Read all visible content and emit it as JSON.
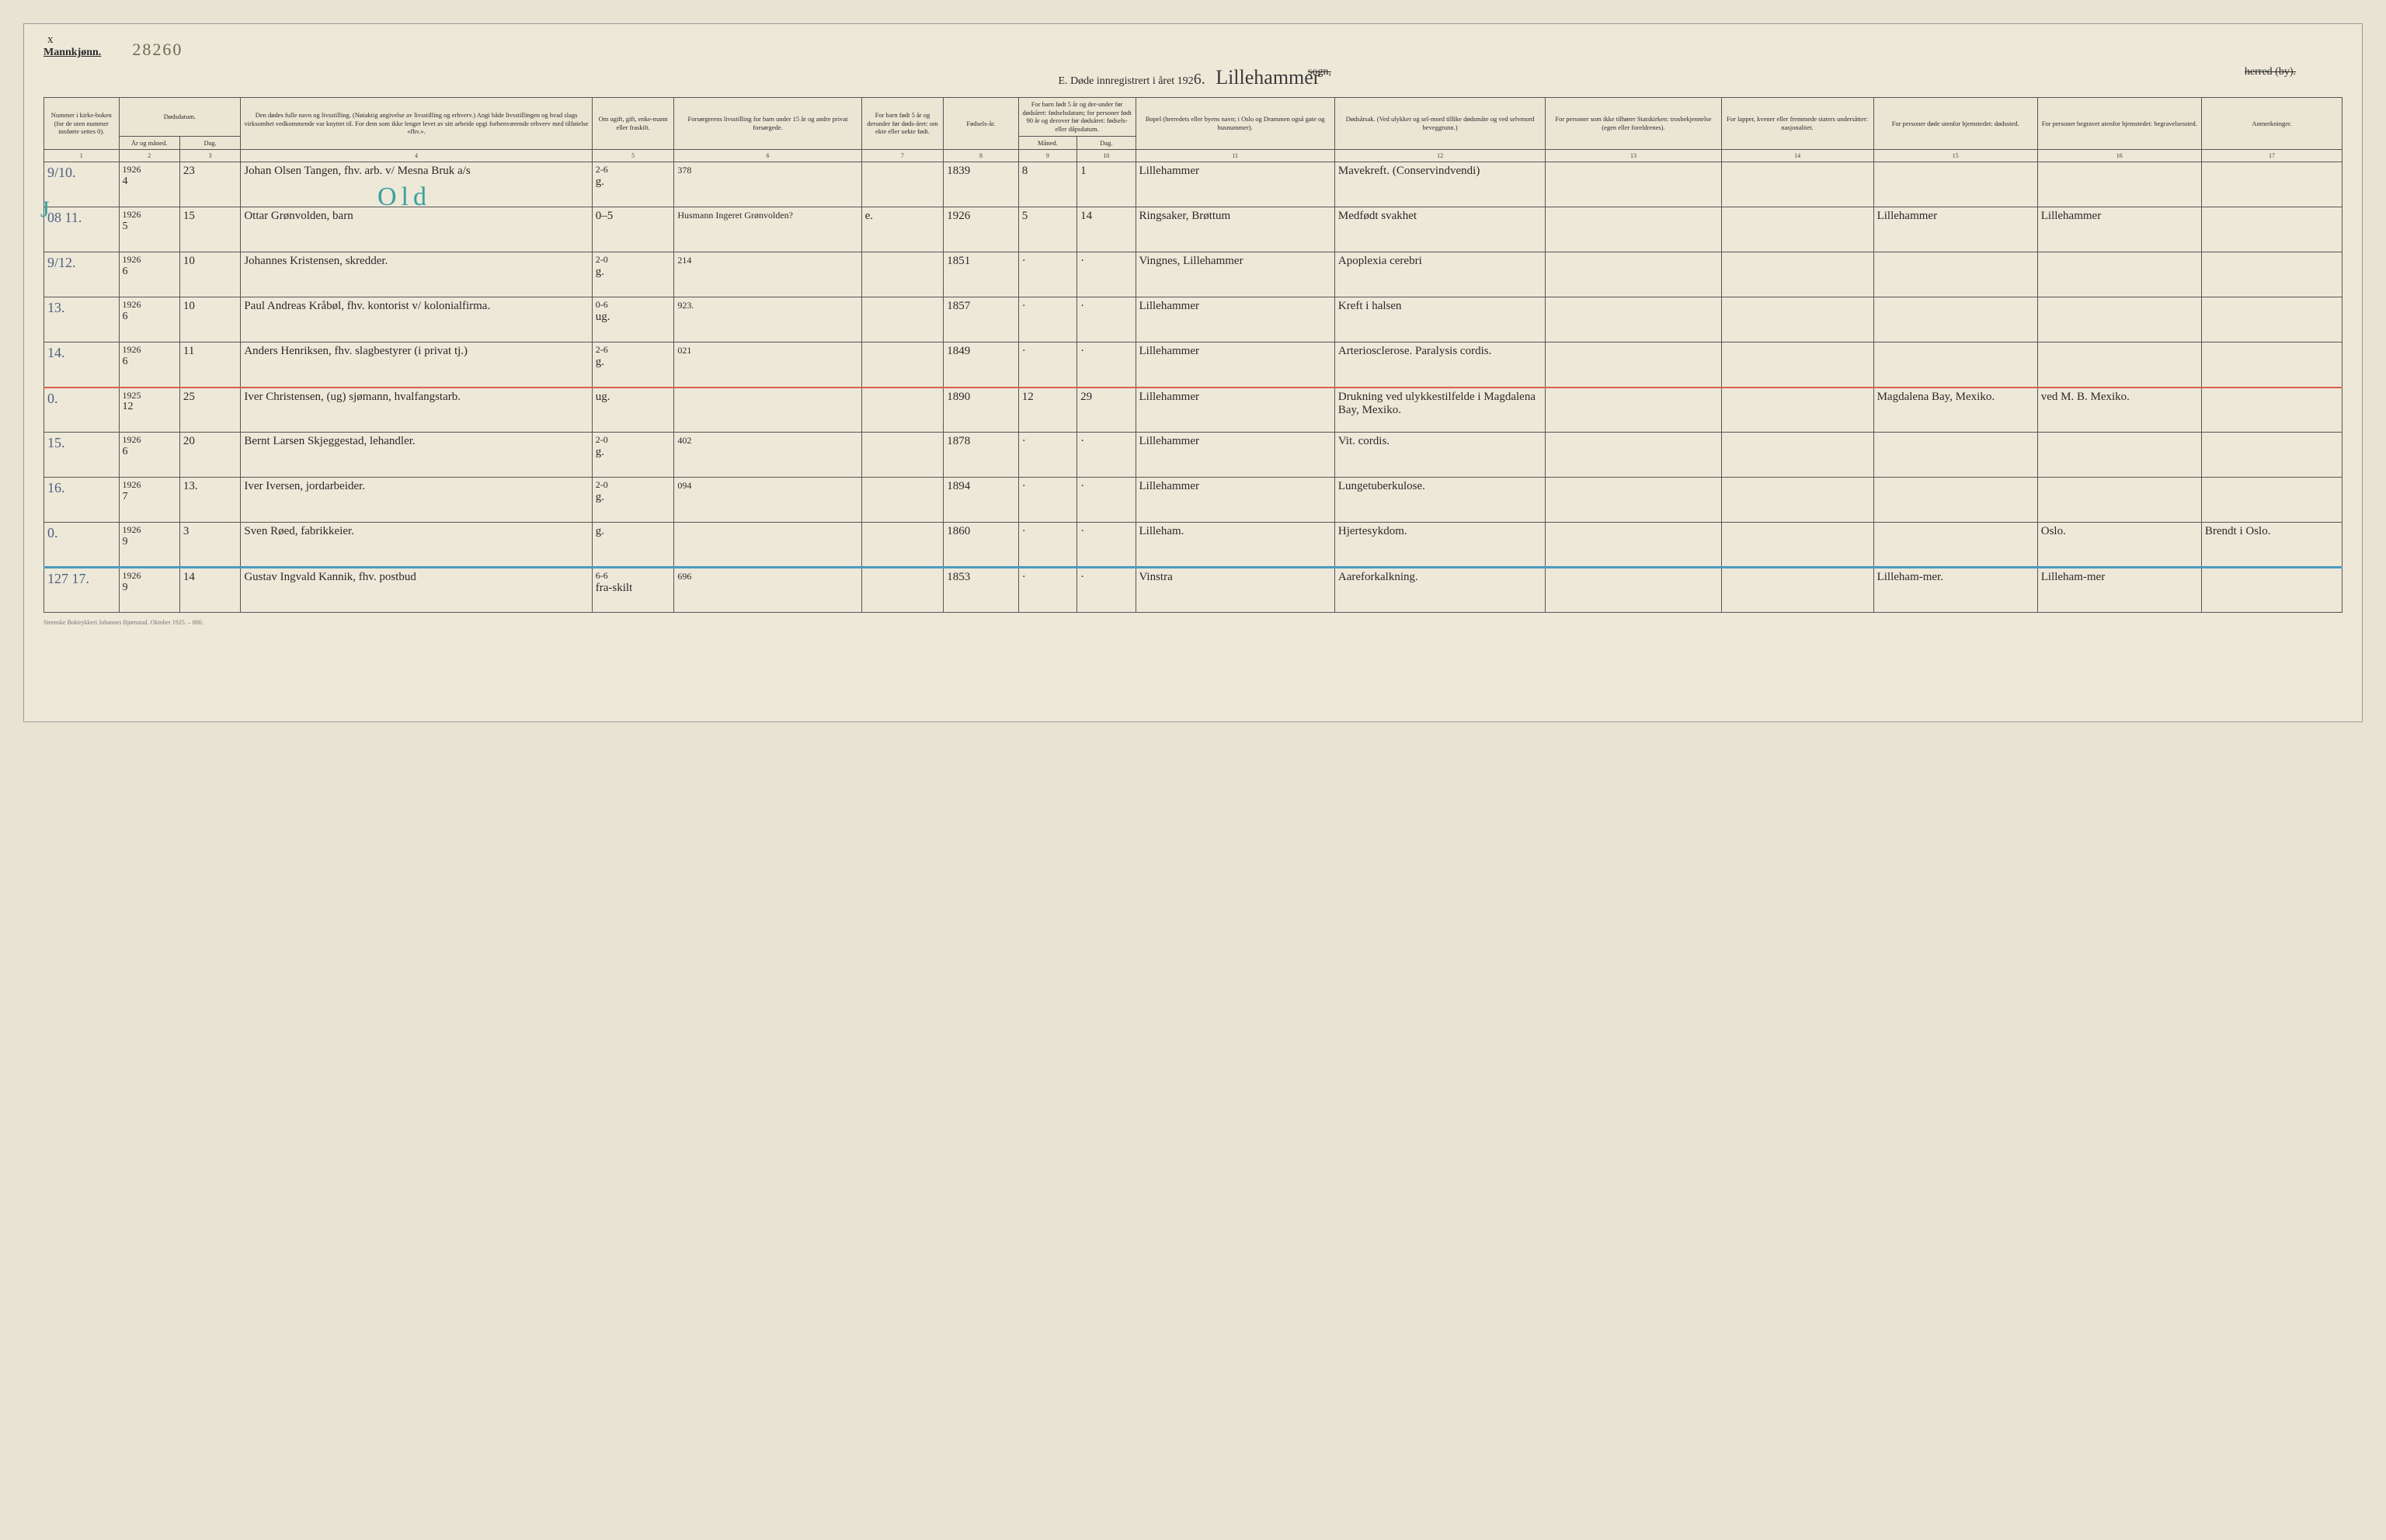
{
  "header": {
    "x_mark": "x",
    "gender": "Mannkjønn.",
    "page_number_hand": "28260",
    "title_prefix": "E.  Døde innregistrert i året 192",
    "year_digit": "6.",
    "place_name": "Lillehammer",
    "sogn": "sogn,",
    "herred": "herred (by)."
  },
  "columns": {
    "num": "Nummer i kirke-boken (for de uten nummer innførte settes 0).",
    "date": "Dødsdatum.",
    "date_year": "År og måned.",
    "date_day": "Dag.",
    "name": "Den dødes fulle navn og livsstilling. (Nøiaktig angivelse av livsstilling og erhverv.) Angi både livsstillingen og hvad slags virksomhet vedkommende var knyttet til. For dem som ikke lenger levet av sitt arbeide opgi forhenværende erhverv med tilføielse «fhv.».",
    "civil": "Om ugift, gift, enke-mann eller fraskilt.",
    "provider": "Forsørgerens livsstilling for barn under 15 år og andre privat forsørgede.",
    "born5": "For barn født 5 år og derunder før døds-året: om ekte eller uekte født.",
    "birthyear": "Fødsels-år.",
    "born5b": "For barn født 5 år og der-under før dødsåret: fødselsdatum; for personer født 90 år og derover før dødsåret: fødsels- eller dåpsdatum.",
    "born5b_m": "Måned.",
    "born5b_d": "Dag.",
    "residence": "Bopel (herredets eller byens navn; i Oslo og Drammen også gate og husnummer).",
    "cause": "Dødsårsak. (Ved ulykker og sel-mord tillike dødsmåte og ved selvmord beveggrunn.)",
    "notstate": "For personer som ikke tilhører Statskirken: trosbekjennelse (egen eller foreldrenes).",
    "lapper": "For lapper, kvener eller fremmede staters undersåtter: nasjonalitet.",
    "diedout": "For personer døde utenfor hjemstedet: dødssted.",
    "buriedout": "For personer begravet utenfor hjemstedet: begravelsessted.",
    "remarks": "Anmerkninger."
  },
  "colnums": [
    "1",
    "2",
    "3",
    "4",
    "5",
    "6",
    "7",
    "8",
    "9",
    "10",
    "11",
    "12",
    "13",
    "14",
    "15",
    "16",
    "17"
  ],
  "rows": [
    {
      "margin": "9/10.",
      "year": "1926",
      "mon": "4",
      "day": "23",
      "name": "Johan Olsen Tangen, fhv. arb. v/ Mesna Bruk a/s",
      "civil": "g.",
      "civil_up": "2-6",
      "provider": "378",
      "ekte": "",
      "birthyear": "1839",
      "bm": "8",
      "bd": "1",
      "residence": "Lillehammer",
      "cause": "Mavekreft. (Conservindvendi)",
      "c13": "",
      "c14": "",
      "c15": "",
      "c16": "",
      "c17": ""
    },
    {
      "margin": "08 11.",
      "year": "1926",
      "mon": "5",
      "day": "15",
      "name": "Ottar Grønvolden, barn",
      "civil": "0–5",
      "civil_up": "",
      "provider": "Husmann Ingeret Grønvolden?",
      "ekte": "e.",
      "birthyear": "1926",
      "bm": "5",
      "bd": "14",
      "residence": "Ringsaker, Brøttum",
      "cause": "Medfødt svakhet",
      "c13": "",
      "c14": "",
      "c15": "Lillehammer",
      "c16": "Lillehammer",
      "c17": ""
    },
    {
      "margin": "9/12.",
      "year": "1926",
      "mon": "6",
      "day": "10",
      "name": "Johannes Kristensen, skredder.",
      "civil": "g.",
      "civil_up": "2-0",
      "provider": "214",
      "ekte": "",
      "birthyear": "1851",
      "bm": "·",
      "bd": "·",
      "residence": "Vingnes, Lillehammer",
      "cause": "Apoplexia cerebri",
      "c13": "",
      "c14": "",
      "c15": "",
      "c16": "",
      "c17": ""
    },
    {
      "margin": "13.",
      "year": "1926",
      "mon": "6",
      "day": "10",
      "name": "Paul Andreas Kråbøl, fhv. kontorist v/ kolonialfirma.",
      "civil": "ug.",
      "civil_up": "0-6",
      "provider": "923.",
      "ekte": "",
      "birthyear": "1857",
      "bm": "·",
      "bd": "·",
      "residence": "Lillehammer",
      "cause": "Kreft i halsen",
      "c13": "",
      "c14": "",
      "c15": "",
      "c16": "",
      "c17": ""
    },
    {
      "margin": "14.",
      "year": "1926",
      "mon": "6",
      "day": "11",
      "name": "Anders Henriksen, fhv. slagbestyrer (i privat tj.)",
      "civil": "g.",
      "civil_up": "2-6",
      "provider": "021",
      "ekte": "",
      "birthyear": "1849",
      "bm": "·",
      "bd": "·",
      "residence": "Lillehammer",
      "cause": "Arteriosclerose. Paralysis cordis.",
      "c13": "",
      "c14": "",
      "c15": "",
      "c16": "",
      "c17": ""
    },
    {
      "margin": "0.",
      "year": "1925",
      "mon": "12",
      "day": "25",
      "name": "Iver Christensen, (ug) sjømann, hvalfangstarb.",
      "civil": "ug.",
      "civil_up": "",
      "provider": "",
      "ekte": "",
      "birthyear": "1890",
      "bm": "12",
      "bd": "29",
      "residence": "Lillehammer",
      "cause": "Drukning ved ulykkestilfelde i Magdalena Bay, Mexiko.",
      "c13": "",
      "c14": "",
      "c15": "Magdalena Bay, Mexiko.",
      "c16": "ved M. B. Mexiko.",
      "c17": ""
    },
    {
      "margin": "15.",
      "year": "1926",
      "mon": "6",
      "day": "20",
      "name": "Bernt Larsen Skjeggestad, lehandler.",
      "civil": "g.",
      "civil_up": "2-0",
      "provider": "402",
      "ekte": "",
      "birthyear": "1878",
      "bm": "·",
      "bd": "·",
      "residence": "Lillehammer",
      "cause": "Vit. cordis.",
      "c13": "",
      "c14": "",
      "c15": "",
      "c16": "",
      "c17": ""
    },
    {
      "margin": "16.",
      "year": "1926",
      "mon": "7",
      "day": "13.",
      "name": "Iver Iversen, jordarbeider.",
      "civil": "g.",
      "civil_up": "2-0",
      "provider": "094",
      "ekte": "",
      "birthyear": "1894",
      "bm": "·",
      "bd": "·",
      "residence": "Lillehammer",
      "cause": "Lungetuberkulose.",
      "c13": "",
      "c14": "",
      "c15": "",
      "c16": "",
      "c17": ""
    },
    {
      "margin": "0.",
      "year": "1926",
      "mon": "9",
      "day": "3",
      "name": "Sven Røed, fabrikkeier.",
      "civil": "g.",
      "civil_up": "",
      "provider": "",
      "ekte": "",
      "birthyear": "1860",
      "bm": "·",
      "bd": "·",
      "residence": "Lilleham.",
      "cause": "Hjertesykdom.",
      "c13": "",
      "c14": "",
      "c15": "",
      "c16": "Oslo.",
      "c17": "Brendt i Oslo."
    },
    {
      "margin": "127 17.",
      "year": "1926",
      "mon": "9",
      "day": "14",
      "name": "Gustav Ingvald Kannik, fhv. postbud",
      "civil": "fra-skilt",
      "civil_up": "6-6",
      "provider": "696",
      "ekte": "",
      "birthyear": "1853",
      "bm": "·",
      "bd": "·",
      "residence": "Vinstra",
      "cause": "Aareforkalkning.",
      "c13": "",
      "c14": "",
      "c15": "Lilleham-mer.",
      "c16": "Lilleham-mer",
      "c17": ""
    }
  ],
  "annotations": {
    "green_text": "Old",
    "green_hook": "J"
  },
  "footer": "Steenske Boktrykkeri Johannes Bjørnstad.  Oktober 1925. – 800."
}
